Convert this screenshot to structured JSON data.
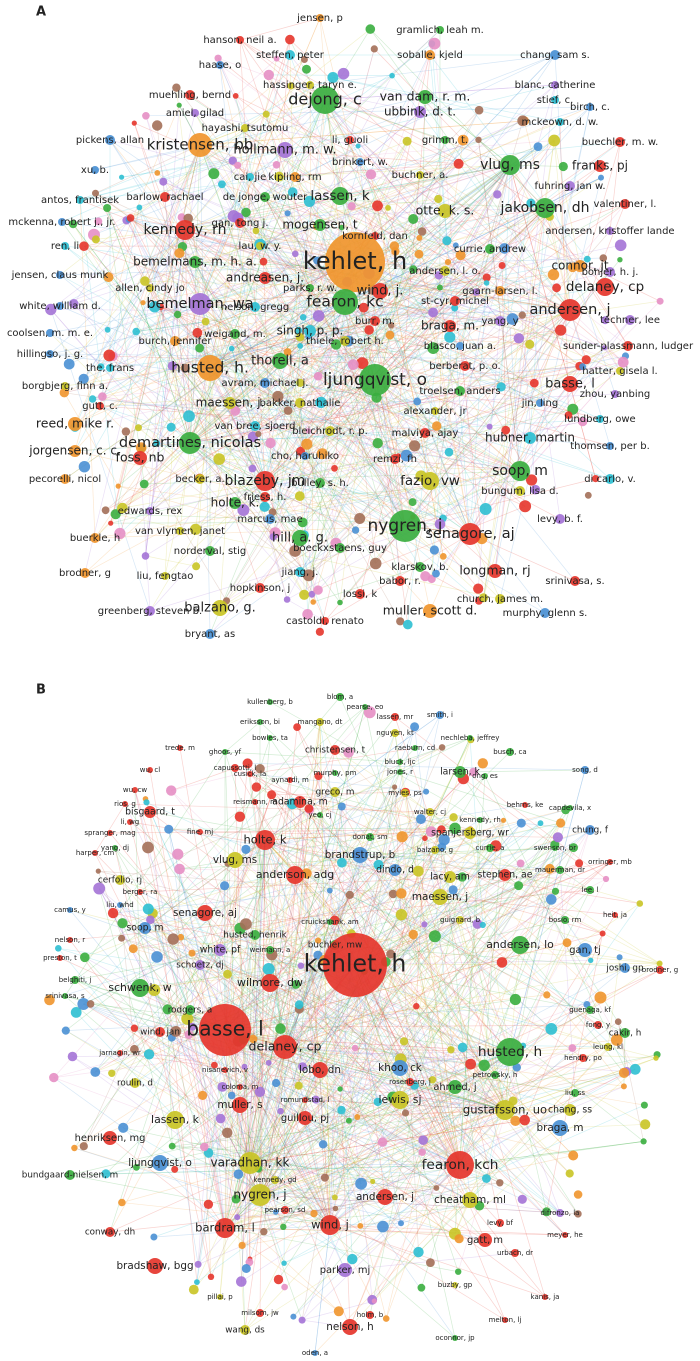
{
  "panels": [
    {
      "label": "A",
      "nodes": [
        "jensen, p",
        "gramlich, leah m.",
        "hanson, neil a.",
        "steffen, peter",
        "soballe, kjeld",
        "chang, sam s.",
        "haase, o",
        "hassinger, taryn e.",
        "blanc, catherine",
        "muehling, bernd",
        "dejong, c",
        "van dam, r. m.",
        "stief, c.",
        "amiel, gilad",
        "hayashi, tsutomu",
        "ubbink, d. t.",
        "mckeown, d. w.",
        "birch, c.",
        "pickens, allan",
        "li, guoli",
        "grimm, t.",
        "buechler, m. w.",
        "kristensen, bb",
        "hollmann, m. w.",
        "vlug, ms",
        "franks, pj",
        "xu, b.",
        "cai, jie",
        "kipling, rm",
        "buchner, a.",
        "brinkert, w.",
        "barlow, rachael",
        "fuhring, jan w.",
        "valentiner, l.",
        "antos, frantisek",
        "de jonge, wouter",
        "lassen, k",
        "jakobsen, dh",
        "mckenna, robert j., jr.",
        "gan, tong j.",
        "mogensen, t",
        "otte, k. s.",
        "andersen, kristoffer lande",
        "kennedy, rh",
        "ren, li",
        "lau, w. y.",
        "kornfeld, dan",
        "currie, andrew",
        "connor, jt",
        "jensen, claus munk",
        "bemelmans, m. h. a.",
        "kehlet, h",
        "andreasen, j.",
        "andersen, l. o.",
        "bonjer, h. j.",
        "allen, cindy jo",
        "wind, j.",
        "delaney, cp",
        "white, william d.",
        "bemelman, wa",
        "nelson, gregg",
        "parks, r. w.",
        "fearon, kc",
        "st-cyr, michel",
        "gaarn-larsen, l.",
        "andersen, j",
        "techner, lee",
        "burr, m.",
        "coolsen, m. m. e.",
        "weigand, m.",
        "singh, p. p.",
        "braga, m.",
        "yang, y",
        "hillingso, j. g.",
        "burch, jennifer",
        "thiele, robert h.",
        "blasco, juan a.",
        "sunder-plassmann, ludger",
        "the, frans",
        "husted, h.",
        "thorell, a",
        "berberat, p. o.",
        "hatter, gisela l.",
        "borgbjerg, finn a.",
        "avram, michael j.",
        "ljungqvist, o",
        "basse, l",
        "zhou, yanbing",
        "gutt, c.",
        "maessen, j.",
        "bakker, nathalie",
        "troelsen, anders",
        "reed, mike r.",
        "van bree, sjoerd",
        "alexander, jr",
        "jin, ling",
        "lundberg, owe",
        "jorgensen, c. c.",
        "demartines, nicolas",
        "bleichrodt, r. p.",
        "malviya, ajay",
        "hubner, martin",
        "foss, nb",
        "cho, haruhiko",
        "remzi, fh",
        "thomsen, per b.",
        "blazeby, jm",
        "fazio, vw",
        "soop, m",
        "pecorelli, nicol",
        "becker, a.",
        "bulley, s. h.",
        "di carlo, v.",
        "friess, h.",
        "holte, k.",
        "bungum, lisa d.",
        "edwards, rex",
        "marcus, mae",
        "hill, a. g.",
        "nygren, j",
        "senagore, aj",
        "levy, b. f.",
        "van vlymen, janet",
        "buerkle, h",
        "boeckxstaens, guy",
        "norderval, stig",
        "klarskov, b.",
        "longman, rj",
        "srinivasa, s.",
        "brodner, g",
        "jiang, j.",
        "babor, r.",
        "church, james m.",
        "liu, fengtao",
        "hopkinson, j",
        "lossi, k",
        "muller, scott d.",
        "murphy, glenn s.",
        "greenberg, steven b.",
        "balzano, g.",
        "castoldi, renato",
        "bryant, as"
      ]
    },
    {
      "label": "B",
      "nodes": [
        "blom, a",
        "kullenberg, b",
        "pearse, eo",
        "lassen, mr",
        "smith, i",
        "eriksson, bi",
        "mangano, dt",
        "nguyen, kt",
        "bowles, ta",
        "nechleba, jeffrey",
        "christensen, t",
        "raeburn, cd",
        "busch, ca",
        "trede, m",
        "ghoos, yf",
        "capussotti, l",
        "bluck, ljc",
        "larsen, k",
        "song, d",
        "wu, cl",
        "cusick, la",
        "aynardi, m",
        "murphy, pm",
        "jones, r",
        "ong, es",
        "wu, cw",
        "greco, m",
        "myles, ps",
        "rios, g",
        "reismann, m",
        "adamina, m",
        "behrns, ke",
        "capdevila, x",
        "walter, cj",
        "bisgaard, t",
        "kennedy, rh",
        "yeo, cj",
        "li, wg",
        "spranger, mag",
        "fine, mj",
        "spanjersberg, wr",
        "chung, f",
        "donat, sm",
        "holte, k",
        "yang, dj",
        "balzano, g",
        "currie, a",
        "swenson, br",
        "harper, cm",
        "brandstrup, b",
        "vlug, ms",
        "orringer, mb",
        "mauerman, dr",
        "dindo, d",
        "anderson, adg",
        "stephen, ae",
        "lacy, am",
        "cerfolio, rj",
        "berger, ra",
        "lee, l",
        "maessen, j",
        "liu, whd",
        "camus, y",
        "senagore, aj",
        "cruickshank, am",
        "guignard, b",
        "bosio, rm",
        "heit, ja",
        "soop, m",
        "husted, henrik",
        "nelson, r",
        "white, pf",
        "weimann, a",
        "buchler, mw",
        "andersen, lo",
        "gan, tj",
        "preston, t",
        "schoetz, dj",
        "kehlet, h",
        "joshi, gp",
        "brodner, g",
        "belghiti, j",
        "wilmore, dw",
        "schwenk, w",
        "srinivasa, s",
        "rodgers, a",
        "guenaga, kf",
        "fong, y",
        "basse, l",
        "cakir, h",
        "wind, jan",
        "delaney, cp",
        "leung, kl",
        "husted, h",
        "hendry, po",
        "jarnagin, wr",
        "khoo, ck",
        "lobo, dn",
        "nisanevich, v",
        "petrowsky, h",
        "rosenberg, j",
        "roulin, d",
        "ahmed, j",
        "coloma, m",
        "liu, ss",
        "romundstad, l",
        "lewis, sj",
        "muller, s",
        "gustafsson, uo",
        "chang, ss",
        "guillou, pj",
        "lassen, k",
        "braga, m",
        "henriksen, mg",
        "bundgaard-nielsen, m",
        "ljungqvist, o",
        "varadhan, kk",
        "fearon, kch",
        "kennedy, gd",
        "nygren, j",
        "andersen, j",
        "cheatham, ml",
        "pearson, sd",
        "difronzo, la",
        "levy, bf",
        "wind, j",
        "bardram, l",
        "conway, dh",
        "meyer, he",
        "gatt, m",
        "urbach, dr",
        "bradshaw, bgg",
        "parker, mj",
        "buzby, gp",
        "kanis, ja",
        "pillai, p",
        "milsom, jw",
        "holm, b",
        "melton, lj",
        "nelson, h",
        "wang, ds",
        "oconnor, jp",
        "oden, a"
      ]
    }
  ]
}
